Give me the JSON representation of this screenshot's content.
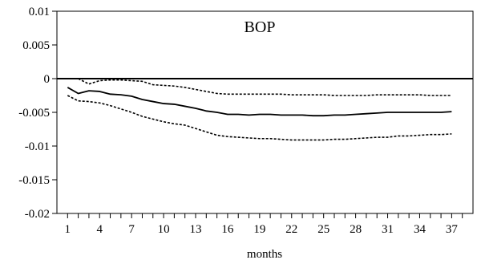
{
  "chart_data": {
    "type": "line",
    "title": "BOP",
    "xlabel": "months",
    "ylabel": "",
    "xlim": [
      0,
      39
    ],
    "ylim": [
      -0.02,
      0.01
    ],
    "grid": false,
    "legend": "none",
    "x_tick_values": [
      1,
      4,
      7,
      10,
      13,
      16,
      19,
      22,
      25,
      28,
      31,
      34,
      37
    ],
    "x_tick_labels": [
      "1",
      "4",
      "7",
      "10",
      "13",
      "16",
      "19",
      "22",
      "25",
      "28",
      "31",
      "34",
      "37"
    ],
    "y_tick_values": [
      0.01,
      0.005,
      0,
      -0.005,
      -0.01,
      -0.015,
      -0.02
    ],
    "y_tick_labels": [
      "0.01",
      "0.005",
      "0",
      "-0.005",
      "-0.01",
      "-0.015",
      "-0.02"
    ],
    "zero_line": 0,
    "series": [
      {
        "role": "response",
        "style": "solid",
        "color": "#000000",
        "x": [
          1,
          2,
          3,
          4,
          5,
          6,
          7,
          8,
          9,
          10,
          11,
          12,
          13,
          14,
          15,
          16,
          17,
          18,
          19,
          20,
          21,
          22,
          23,
          24,
          25,
          26,
          27,
          28,
          29,
          30,
          31,
          32,
          33,
          34,
          35,
          36,
          37
        ],
        "values": [
          -0.0013,
          -0.0022,
          -0.0018,
          -0.0019,
          -0.0023,
          -0.0024,
          -0.0026,
          -0.0031,
          -0.0034,
          -0.0037,
          -0.0038,
          -0.0041,
          -0.0044,
          -0.0048,
          -0.005,
          -0.0053,
          -0.0053,
          -0.0054,
          -0.0053,
          -0.0053,
          -0.0054,
          -0.0054,
          -0.0054,
          -0.0055,
          -0.0055,
          -0.0054,
          -0.0054,
          -0.0053,
          -0.0052,
          -0.0051,
          -0.005,
          -0.005,
          -0.005,
          -0.005,
          -0.005,
          -0.005,
          -0.0049
        ]
      },
      {
        "role": "upper-band",
        "style": "dotted",
        "color": "#000000",
        "x": [
          2,
          3,
          4,
          5,
          6,
          7,
          8,
          9,
          10,
          11,
          12,
          13,
          14,
          15,
          16,
          17,
          18,
          19,
          20,
          21,
          22,
          23,
          24,
          25,
          26,
          27,
          28,
          29,
          30,
          31,
          32,
          33,
          34,
          35,
          36,
          37
        ],
        "values": [
          0.0,
          -0.0008,
          -0.0003,
          -0.0002,
          -0.0002,
          -0.0003,
          -0.0004,
          -0.0009,
          -0.001,
          -0.0011,
          -0.0013,
          -0.0016,
          -0.0019,
          -0.0022,
          -0.0023,
          -0.0023,
          -0.0023,
          -0.0023,
          -0.0023,
          -0.0023,
          -0.0024,
          -0.0024,
          -0.0024,
          -0.0024,
          -0.0025,
          -0.0025,
          -0.0025,
          -0.0025,
          -0.0024,
          -0.0024,
          -0.0024,
          -0.0024,
          -0.0024,
          -0.0025,
          -0.0025,
          -0.0025
        ]
      },
      {
        "role": "lower-band",
        "style": "dotted",
        "color": "#000000",
        "x": [
          1,
          2,
          3,
          4,
          5,
          6,
          7,
          8,
          9,
          10,
          11,
          12,
          13,
          14,
          15,
          16,
          17,
          18,
          19,
          20,
          21,
          22,
          23,
          24,
          25,
          26,
          27,
          28,
          29,
          30,
          31,
          32,
          33,
          34,
          35,
          36,
          37
        ],
        "values": [
          -0.0025,
          -0.0033,
          -0.0034,
          -0.0036,
          -0.004,
          -0.0045,
          -0.005,
          -0.0056,
          -0.006,
          -0.0064,
          -0.0067,
          -0.0069,
          -0.0074,
          -0.0079,
          -0.0084,
          -0.0086,
          -0.0087,
          -0.0088,
          -0.0089,
          -0.0089,
          -0.009,
          -0.0091,
          -0.0091,
          -0.0091,
          -0.0091,
          -0.009,
          -0.009,
          -0.0089,
          -0.0088,
          -0.0087,
          -0.0087,
          -0.0085,
          -0.0085,
          -0.0084,
          -0.0083,
          -0.0083,
          -0.0082
        ]
      }
    ]
  }
}
